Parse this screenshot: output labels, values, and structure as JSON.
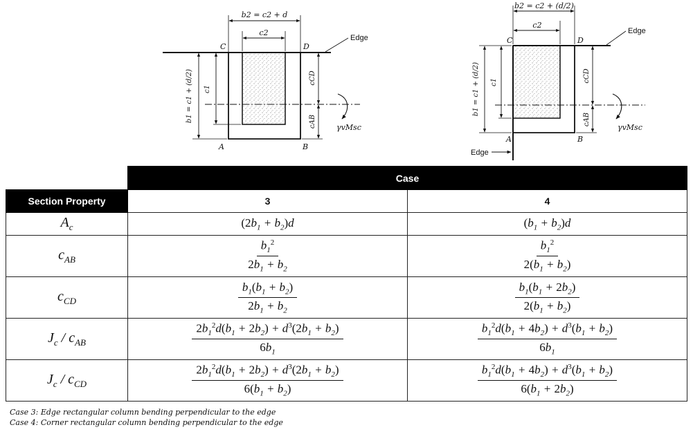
{
  "figure": {
    "left": {
      "b2_label": "b2 = c2 + d",
      "c2_label": "c2",
      "edge_label": "Edge",
      "corner_c": "C",
      "corner_d": "D",
      "corner_a": "A",
      "corner_b": "B",
      "b1_label": "b1 = c1 + (d/2)",
      "c1_label": "c1",
      "ccd_label": "cCD",
      "cab_label": "cAB",
      "moment_label": "γvMsc"
    },
    "right": {
      "b2_label": "b2 = c2 + (d/2)",
      "c2_label": "c2",
      "edge_top_label": "Edge",
      "edge_left_label": "Edge",
      "corner_c": "C",
      "corner_d": "D",
      "corner_a": "A",
      "corner_b": "B",
      "b1_label": "b1 = c1 + (d/2)",
      "c1_label": "c1",
      "ccd_label": "cCD",
      "cab_label": "cAB",
      "moment_label": "γvMsc"
    }
  },
  "table": {
    "case_header": "Case",
    "section_property_header": "Section Property",
    "case3": "3",
    "case4": "4",
    "rows": [
      {
        "prop": "Ac",
        "case3": "(2b1 + b2)d",
        "case4": "(b1 + b2)d"
      },
      {
        "prop": "cAB",
        "case3": "b1^2 / (2b1 + b2)",
        "case4": "b1^2 / 2(b1 + b2)"
      },
      {
        "prop": "cCD",
        "case3": "b1(b1 + b2) / (2b1 + b2)",
        "case4": "b1(b1 + 2b2) / 2(b1 + b2)"
      },
      {
        "prop": "Jc / cAB",
        "case3": "[2b1^2 d(b1 + 2b2) + d^3(2b1 + b2)] / 6b1",
        "case4": "[b1^2 d(b1 + 4b2) + d^3(b1 + b2)] / 6b1"
      },
      {
        "prop": "Jc / cCD",
        "case3": "[2b1^2 d(b1 + 2b2) + d^3(2b1 + b2)] / 6(b1 + b2)",
        "case4": "[b1^2 d(b1 + 4b2) + d^3(b1 + b2)] / 6(b1 + 2b2)"
      }
    ]
  },
  "notes": {
    "case3": "Case 3: Edge rectangular column bending perpendicular to the edge",
    "case4": "Case 4: Corner rectangular column bending perpendicular to the edge"
  }
}
